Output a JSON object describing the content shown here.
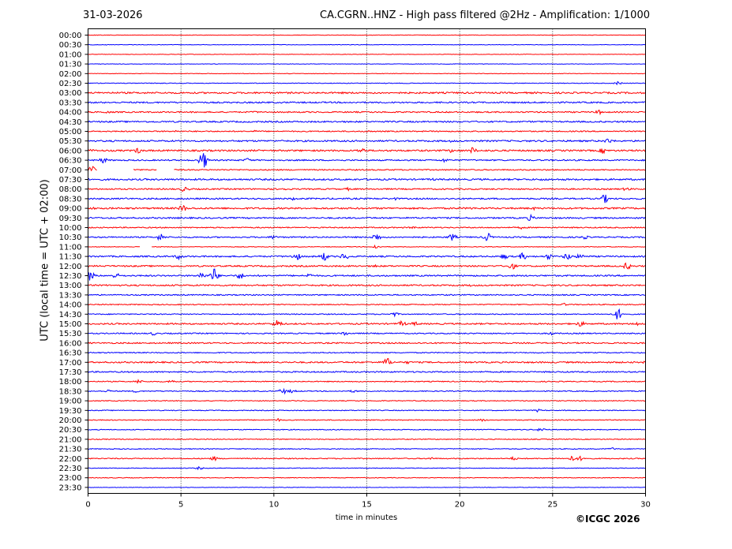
{
  "header": {
    "date": "31-03-2026",
    "title": "CA.CGRN..HNZ - High pass filtered @2Hz - Amplification: 1/1000"
  },
  "copyright": "©ICGC 2026",
  "chart_data": {
    "type": "line",
    "title": "CA.CGRN..HNZ - High pass filtered @2Hz - Amplification: 1/1000",
    "xlabel": "time in minutes",
    "ylabel": "UTC (local time = UTC + 02:00)",
    "xlim": [
      0,
      30
    ],
    "x_ticks": [
      0,
      5,
      10,
      15,
      20,
      25,
      30
    ],
    "grid": "vertical dotted lines at x = 5, 10, 15, 20, 25",
    "colors": {
      "even_rows": "#ff0000",
      "odd_rows": "#0000ff",
      "grid": "#000000"
    },
    "rows": [
      "00:00",
      "00:30",
      "01:00",
      "01:30",
      "02:00",
      "02:30",
      "03:00",
      "03:30",
      "04:00",
      "04:30",
      "05:00",
      "05:30",
      "06:00",
      "06:30",
      "07:00",
      "07:30",
      "08:00",
      "08:30",
      "09:00",
      "09:30",
      "10:00",
      "10:30",
      "11:00",
      "11:30",
      "12:00",
      "12:30",
      "13:00",
      "13:30",
      "14:00",
      "14:30",
      "15:00",
      "15:30",
      "16:00",
      "16:30",
      "17:00",
      "17:30",
      "18:00",
      "18:30",
      "19:00",
      "19:30",
      "20:00",
      "20:30",
      "21:00",
      "21:30",
      "22:00",
      "22:30",
      "23:00",
      "23:30"
    ],
    "noise_level": [
      0.3,
      0.3,
      0.3,
      0.3,
      0.3,
      0.4,
      1.0,
      0.9,
      0.8,
      0.9,
      0.7,
      1.0,
      1.0,
      0.8,
      0.7,
      1.0,
      0.8,
      0.9,
      1.0,
      0.9,
      0.7,
      0.8,
      0.4,
      0.9,
      0.9,
      0.9,
      0.9,
      0.7,
      0.6,
      0.6,
      0.9,
      0.7,
      0.8,
      0.6,
      0.9,
      0.8,
      0.6,
      0.6,
      0.5,
      0.5,
      0.5,
      0.5,
      0.5,
      0.5,
      0.6,
      0.4,
      0.4,
      0.3
    ],
    "events": [
      {
        "row": 1,
        "x": 1.0,
        "amp": 0.6
      },
      {
        "row": 5,
        "x": 16.0,
        "amp": 1.2
      },
      {
        "row": 5,
        "x": 28.5,
        "amp": 2.2
      },
      {
        "row": 8,
        "x": 1.0,
        "amp": 2.0
      },
      {
        "row": 8,
        "x": 9.0,
        "amp": 1.5
      },
      {
        "row": 8,
        "x": 27.5,
        "amp": 3.0
      },
      {
        "row": 9,
        "x": 4.0,
        "amp": 1.2
      },
      {
        "row": 9,
        "x": 20.0,
        "amp": 1.2
      },
      {
        "row": 10,
        "x": 4.7,
        "amp": 1.5
      },
      {
        "row": 10,
        "x": 9.0,
        "amp": 1.5
      },
      {
        "row": 10,
        "x": 15.0,
        "amp": 1.8
      },
      {
        "row": 10,
        "x": 20.5,
        "amp": 1.2
      },
      {
        "row": 11,
        "x": 19.5,
        "amp": 1.5
      },
      {
        "row": 11,
        "x": 28.0,
        "amp": 4.0
      },
      {
        "row": 12,
        "x": 0.2,
        "amp": 2.0
      },
      {
        "row": 12,
        "x": 2.7,
        "amp": 4.0
      },
      {
        "row": 12,
        "x": 14.7,
        "amp": 4.0
      },
      {
        "row": 12,
        "x": 19.5,
        "amp": 2.5
      },
      {
        "row": 12,
        "x": 20.7,
        "amp": 4.5
      },
      {
        "row": 12,
        "x": 27.7,
        "amp": 4.0
      },
      {
        "row": 13,
        "x": 0.8,
        "amp": 4.0
      },
      {
        "row": 13,
        "x": 6.2,
        "amp": 12.0
      },
      {
        "row": 13,
        "x": 8.6,
        "amp": 3.0
      },
      {
        "row": 13,
        "x": 19.2,
        "amp": 3.0
      },
      {
        "row": 14,
        "x": 0.2,
        "amp": 7.0
      },
      {
        "row": 14,
        "x": 4.2,
        "amp": 2.0
      },
      {
        "row": 15,
        "x": 18.5,
        "amp": 2.0
      },
      {
        "row": 15,
        "x": 24.5,
        "amp": 2.0
      },
      {
        "row": 16,
        "x": 5.2,
        "amp": 4.0
      },
      {
        "row": 16,
        "x": 10.5,
        "amp": 2.0
      },
      {
        "row": 16,
        "x": 14.0,
        "amp": 2.0
      },
      {
        "row": 16,
        "x": 29.0,
        "amp": 3.0
      },
      {
        "row": 17,
        "x": 2.0,
        "amp": 1.5
      },
      {
        "row": 17,
        "x": 11.0,
        "amp": 2.0
      },
      {
        "row": 17,
        "x": 16.5,
        "amp": 2.0
      },
      {
        "row": 17,
        "x": 27.8,
        "amp": 6.0
      },
      {
        "row": 18,
        "x": 0.2,
        "amp": 2.0
      },
      {
        "row": 18,
        "x": 5.1,
        "amp": 5.0
      },
      {
        "row": 18,
        "x": 20.6,
        "amp": 2.0
      },
      {
        "row": 18,
        "x": 24.0,
        "amp": 2.0
      },
      {
        "row": 19,
        "x": 23.8,
        "amp": 4.0
      },
      {
        "row": 20,
        "x": 17.5,
        "amp": 2.0
      },
      {
        "row": 20,
        "x": 23.3,
        "amp": 2.0
      },
      {
        "row": 21,
        "x": 3.9,
        "amp": 5.0
      },
      {
        "row": 21,
        "x": 10.0,
        "amp": 3.0
      },
      {
        "row": 21,
        "x": 15.5,
        "amp": 6.0
      },
      {
        "row": 21,
        "x": 19.6,
        "amp": 5.0
      },
      {
        "row": 21,
        "x": 21.5,
        "amp": 6.0
      },
      {
        "row": 21,
        "x": 26.7,
        "amp": 3.0
      },
      {
        "row": 22,
        "x": 15.5,
        "amp": 3.0
      },
      {
        "row": 23,
        "x": 4.9,
        "amp": 4.0
      },
      {
        "row": 23,
        "x": 11.2,
        "amp": 6.0
      },
      {
        "row": 23,
        "x": 12.7,
        "amp": 6.0
      },
      {
        "row": 23,
        "x": 13.8,
        "amp": 5.0
      },
      {
        "row": 23,
        "x": 22.4,
        "amp": 4.0
      },
      {
        "row": 23,
        "x": 23.4,
        "amp": 5.0
      },
      {
        "row": 23,
        "x": 24.8,
        "amp": 4.0
      },
      {
        "row": 23,
        "x": 25.8,
        "amp": 5.0
      },
      {
        "row": 23,
        "x": 26.5,
        "amp": 4.0
      },
      {
        "row": 24,
        "x": 15.5,
        "amp": 2.0
      },
      {
        "row": 24,
        "x": 22.8,
        "amp": 5.0
      },
      {
        "row": 24,
        "x": 29.0,
        "amp": 5.0
      },
      {
        "row": 25,
        "x": 0.1,
        "amp": 7.0
      },
      {
        "row": 25,
        "x": 1.5,
        "amp": 4.0
      },
      {
        "row": 25,
        "x": 6.1,
        "amp": 5.0
      },
      {
        "row": 25,
        "x": 6.8,
        "amp": 10.0
      },
      {
        "row": 25,
        "x": 8.2,
        "amp": 5.0
      },
      {
        "row": 25,
        "x": 11.9,
        "amp": 3.0
      },
      {
        "row": 26,
        "x": 20.6,
        "amp": 1.5
      },
      {
        "row": 28,
        "x": 25.6,
        "amp": 2.0
      },
      {
        "row": 29,
        "x": 16.5,
        "amp": 3.0
      },
      {
        "row": 29,
        "x": 28.5,
        "amp": 8.0
      },
      {
        "row": 30,
        "x": 10.2,
        "amp": 6.0
      },
      {
        "row": 30,
        "x": 16.9,
        "amp": 4.0
      },
      {
        "row": 30,
        "x": 17.6,
        "amp": 3.0
      },
      {
        "row": 30,
        "x": 26.5,
        "amp": 4.0
      },
      {
        "row": 30,
        "x": 29.5,
        "amp": 3.0
      },
      {
        "row": 31,
        "x": 3.5,
        "amp": 2.5
      },
      {
        "row": 31,
        "x": 13.8,
        "amp": 3.0
      },
      {
        "row": 31,
        "x": 24.9,
        "amp": 2.5
      },
      {
        "row": 34,
        "x": 16.1,
        "amp": 6.0
      },
      {
        "row": 34,
        "x": 17.2,
        "amp": 2.0
      },
      {
        "row": 34,
        "x": 30.0,
        "amp": 2.0
      },
      {
        "row": 36,
        "x": 2.7,
        "amp": 3.0
      },
      {
        "row": 36,
        "x": 4.5,
        "amp": 2.5
      },
      {
        "row": 37,
        "x": 1.1,
        "amp": 2.0
      },
      {
        "row": 37,
        "x": 2.6,
        "amp": 2.0
      },
      {
        "row": 37,
        "x": 10.5,
        "amp": 4.0
      },
      {
        "row": 37,
        "x": 11.0,
        "amp": 2.5
      },
      {
        "row": 37,
        "x": 14.3,
        "amp": 2.0
      },
      {
        "row": 39,
        "x": 24.2,
        "amp": 2.0
      },
      {
        "row": 40,
        "x": 10.2,
        "amp": 2.0
      },
      {
        "row": 40,
        "x": 21.2,
        "amp": 2.0
      },
      {
        "row": 41,
        "x": 24.4,
        "amp": 3.0
      },
      {
        "row": 43,
        "x": 28.2,
        "amp": 2.0
      },
      {
        "row": 44,
        "x": 6.8,
        "amp": 3.0
      },
      {
        "row": 44,
        "x": 18.5,
        "amp": 2.0
      },
      {
        "row": 44,
        "x": 22.9,
        "amp": 2.5
      },
      {
        "row": 44,
        "x": 26.1,
        "amp": 4.0
      },
      {
        "row": 44,
        "x": 26.5,
        "amp": 3.0
      },
      {
        "row": 45,
        "x": 6.0,
        "amp": 2.0
      }
    ],
    "gaps": [
      {
        "row": 14,
        "x_start": 0.5,
        "x_end": 2.4
      },
      {
        "row": 14,
        "x_start": 3.7,
        "x_end": 4.6
      },
      {
        "row": 22,
        "x_start": 2.8,
        "x_end": 3.4
      }
    ]
  }
}
